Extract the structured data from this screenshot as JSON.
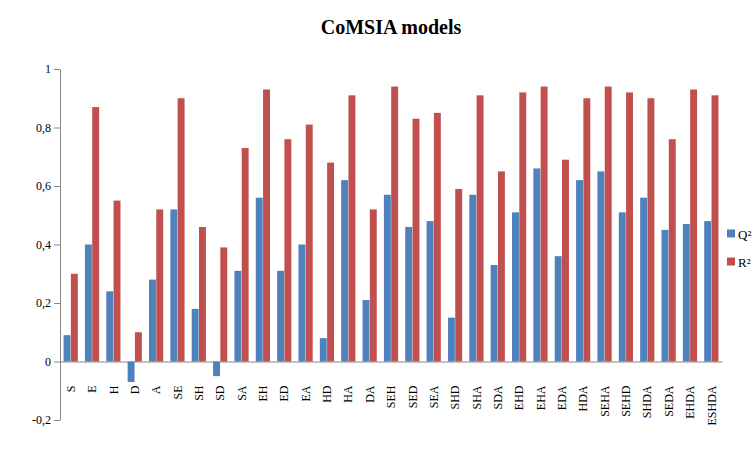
{
  "chart_data": {
    "type": "bar",
    "title": "CoMSIA models",
    "categories": [
      "S",
      "E",
      "H",
      "D",
      "A",
      "SE",
      "SH",
      "SD",
      "SA",
      "EH",
      "ED",
      "EA",
      "HD",
      "HA",
      "DA",
      "SEH",
      "SED",
      "SEA",
      "SHD",
      "SHA",
      "SDA",
      "EHD",
      "EHA",
      "EDA",
      "HDA",
      "SEHA",
      "SEHD",
      "SHDA",
      "SEDA",
      "EHDA",
      "ESHDA"
    ],
    "series": [
      {
        "name": "Q²",
        "color": "#4f81bd",
        "values": [
          0.09,
          0.4,
          0.24,
          -0.07,
          0.28,
          0.52,
          0.18,
          -0.05,
          0.31,
          0.56,
          0.31,
          0.4,
          0.08,
          0.62,
          0.21,
          0.57,
          0.46,
          0.48,
          0.15,
          0.57,
          0.33,
          0.51,
          0.66,
          0.36,
          0.62,
          0.65,
          0.51,
          0.56,
          0.45,
          0.47,
          0.48
        ]
      },
      {
        "name": "R²",
        "color": "#c0504d",
        "values": [
          0.3,
          0.87,
          0.55,
          0.1,
          0.52,
          0.9,
          0.46,
          0.39,
          0.73,
          0.93,
          0.76,
          0.81,
          0.68,
          0.91,
          0.52,
          0.94,
          0.83,
          0.85,
          0.59,
          0.91,
          0.65,
          0.92,
          0.94,
          0.69,
          0.9,
          0.94,
          0.92,
          0.9,
          0.76,
          0.93,
          0.91
        ]
      }
    ],
    "ylim": [
      -0.2,
      1
    ],
    "yticks": [
      {
        "value": -0.2,
        "label": "-0,2"
      },
      0,
      {
        "value": 0.2,
        "label": "0,2"
      },
      {
        "value": 0.4,
        "label": "0,4"
      },
      {
        "value": 0.6,
        "label": "0,6"
      },
      {
        "value": 0.8,
        "label": "0,8"
      },
      1
    ],
    "grid": false,
    "legend": "right"
  }
}
